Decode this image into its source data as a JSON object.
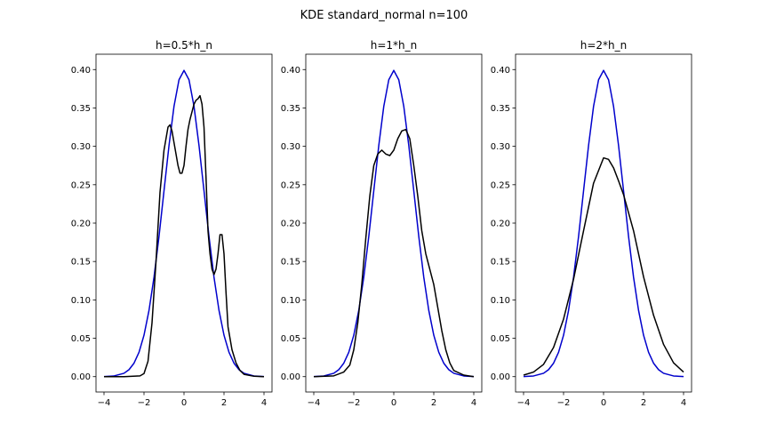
{
  "figure": {
    "suptitle": "KDE standard_normal n=100"
  },
  "chart_data": [
    {
      "type": "line",
      "title": "h=0.5*h_n",
      "xlabel": "",
      "ylabel": "",
      "xlim": [
        -4.4,
        4.4
      ],
      "ylim": [
        -0.02,
        0.42
      ],
      "xticks": [
        -4,
        -2,
        0,
        2,
        4
      ],
      "xtick_labels": [
        "−4",
        "−2",
        "0",
        "2",
        "4"
      ],
      "yticks": [
        0.0,
        0.05,
        0.1,
        0.15,
        0.2,
        0.25,
        0.3,
        0.35,
        0.4
      ],
      "ytick_labels": [
        "0.00",
        "0.05",
        "0.10",
        "0.15",
        "0.20",
        "0.25",
        "0.30",
        "0.35",
        "0.40"
      ],
      "series": [
        {
          "color": "#0000cc",
          "x": [
            -4,
            -3.5,
            -3,
            -2.75,
            -2.5,
            -2.25,
            -2,
            -1.75,
            -1.5,
            -1.25,
            -1,
            -0.75,
            -0.5,
            -0.25,
            0,
            0.25,
            0.5,
            0.75,
            1,
            1.25,
            1.5,
            1.75,
            2,
            2.25,
            2.5,
            2.75,
            3,
            3.5,
            4
          ],
          "y": [
            0.0001,
            0.0009,
            0.0044,
            0.0091,
            0.0175,
            0.0317,
            0.054,
            0.0863,
            0.1295,
            0.1826,
            0.242,
            0.3011,
            0.3521,
            0.3867,
            0.3989,
            0.3867,
            0.3521,
            0.3011,
            0.242,
            0.1826,
            0.1295,
            0.0863,
            0.054,
            0.0317,
            0.0175,
            0.0091,
            0.0044,
            0.0009,
            0.0001
          ]
        },
        {
          "color": "#000000",
          "x": [
            -4,
            -3,
            -2.2,
            -2.0,
            -1.8,
            -1.6,
            -1.4,
            -1.2,
            -1.0,
            -0.9,
            -0.8,
            -0.7,
            -0.6,
            -0.5,
            -0.4,
            -0.3,
            -0.2,
            -0.1,
            0.0,
            0.1,
            0.2,
            0.3,
            0.4,
            0.5,
            0.6,
            0.7,
            0.8,
            0.9,
            1.0,
            1.1,
            1.2,
            1.3,
            1.4,
            1.5,
            1.6,
            1.7,
            1.8,
            1.9,
            2.0,
            2.1,
            2.2,
            2.4,
            2.6,
            2.8,
            3.0,
            3.5,
            4.0
          ],
          "y": [
            0.0,
            0.0,
            0.001,
            0.004,
            0.02,
            0.07,
            0.15,
            0.24,
            0.295,
            0.31,
            0.325,
            0.328,
            0.32,
            0.305,
            0.29,
            0.275,
            0.265,
            0.265,
            0.275,
            0.3,
            0.322,
            0.335,
            0.345,
            0.355,
            0.36,
            0.362,
            0.366,
            0.355,
            0.325,
            0.26,
            0.19,
            0.16,
            0.14,
            0.133,
            0.14,
            0.16,
            0.185,
            0.185,
            0.16,
            0.11,
            0.065,
            0.035,
            0.018,
            0.008,
            0.003,
            0.0005,
            0.0
          ]
        }
      ]
    },
    {
      "type": "line",
      "title": "h=1*h_n",
      "xlabel": "",
      "ylabel": "",
      "xlim": [
        -4.4,
        4.4
      ],
      "ylim": [
        -0.02,
        0.42
      ],
      "xticks": [
        -4,
        -2,
        0,
        2,
        4
      ],
      "xtick_labels": [
        "−4",
        "−2",
        "0",
        "2",
        "4"
      ],
      "yticks": [
        0.0,
        0.05,
        0.1,
        0.15,
        0.2,
        0.25,
        0.3,
        0.35,
        0.4
      ],
      "ytick_labels": [
        "0.00",
        "0.05",
        "0.10",
        "0.15",
        "0.20",
        "0.25",
        "0.30",
        "0.35",
        "0.40"
      ],
      "series": [
        {
          "color": "#0000cc",
          "x": [
            -4,
            -3.5,
            -3,
            -2.75,
            -2.5,
            -2.25,
            -2,
            -1.75,
            -1.5,
            -1.25,
            -1,
            -0.75,
            -0.5,
            -0.25,
            0,
            0.25,
            0.5,
            0.75,
            1,
            1.25,
            1.5,
            1.75,
            2,
            2.25,
            2.5,
            2.75,
            3,
            3.5,
            4
          ],
          "y": [
            0.0001,
            0.0009,
            0.0044,
            0.0091,
            0.0175,
            0.0317,
            0.054,
            0.0863,
            0.1295,
            0.1826,
            0.242,
            0.3011,
            0.3521,
            0.3867,
            0.3989,
            0.3867,
            0.3521,
            0.3011,
            0.242,
            0.1826,
            0.1295,
            0.0863,
            0.054,
            0.0317,
            0.0175,
            0.0091,
            0.0044,
            0.0009,
            0.0001
          ]
        },
        {
          "color": "#000000",
          "x": [
            -4,
            -3.0,
            -2.5,
            -2.2,
            -2.0,
            -1.8,
            -1.6,
            -1.4,
            -1.2,
            -1.0,
            -0.8,
            -0.6,
            -0.4,
            -0.2,
            0.0,
            0.2,
            0.4,
            0.6,
            0.8,
            1.0,
            1.2,
            1.4,
            1.6,
            1.8,
            2.0,
            2.2,
            2.4,
            2.6,
            2.8,
            3.0,
            3.5,
            4.0
          ],
          "y": [
            0.0,
            0.001,
            0.006,
            0.015,
            0.035,
            0.07,
            0.12,
            0.18,
            0.235,
            0.275,
            0.29,
            0.295,
            0.29,
            0.288,
            0.295,
            0.31,
            0.32,
            0.322,
            0.31,
            0.275,
            0.235,
            0.19,
            0.16,
            0.14,
            0.12,
            0.09,
            0.06,
            0.035,
            0.018,
            0.008,
            0.002,
            0.0
          ]
        }
      ]
    },
    {
      "type": "line",
      "title": "h=2*h_n",
      "xlabel": "",
      "ylabel": "",
      "xlim": [
        -4.4,
        4.4
      ],
      "ylim": [
        -0.02,
        0.42
      ],
      "xticks": [
        -4,
        -2,
        0,
        2,
        4
      ],
      "xtick_labels": [
        "−4",
        "−2",
        "0",
        "2",
        "4"
      ],
      "yticks": [
        0.0,
        0.05,
        0.1,
        0.15,
        0.2,
        0.25,
        0.3,
        0.35,
        0.4
      ],
      "ytick_labels": [
        "0.00",
        "0.05",
        "0.10",
        "0.15",
        "0.20",
        "0.25",
        "0.30",
        "0.35",
        "0.40"
      ],
      "series": [
        {
          "color": "#0000cc",
          "x": [
            -4,
            -3.5,
            -3,
            -2.75,
            -2.5,
            -2.25,
            -2,
            -1.75,
            -1.5,
            -1.25,
            -1,
            -0.75,
            -0.5,
            -0.25,
            0,
            0.25,
            0.5,
            0.75,
            1,
            1.25,
            1.5,
            1.75,
            2,
            2.25,
            2.5,
            2.75,
            3,
            3.5,
            4
          ],
          "y": [
            0.0001,
            0.0009,
            0.0044,
            0.0091,
            0.0175,
            0.0317,
            0.054,
            0.0863,
            0.1295,
            0.1826,
            0.242,
            0.3011,
            0.3521,
            0.3867,
            0.3989,
            0.3867,
            0.3521,
            0.3011,
            0.242,
            0.1826,
            0.1295,
            0.0863,
            0.054,
            0.0317,
            0.0175,
            0.0091,
            0.0044,
            0.0009,
            0.0001
          ]
        },
        {
          "color": "#000000",
          "x": [
            -4,
            -3.5,
            -3.0,
            -2.5,
            -2.0,
            -1.5,
            -1.0,
            -0.5,
            0.0,
            0.25,
            0.5,
            0.75,
            1.0,
            1.5,
            2.0,
            2.5,
            3.0,
            3.5,
            4.0
          ],
          "y": [
            0.002,
            0.006,
            0.016,
            0.038,
            0.075,
            0.127,
            0.19,
            0.252,
            0.285,
            0.283,
            0.272,
            0.255,
            0.237,
            0.19,
            0.13,
            0.08,
            0.042,
            0.018,
            0.006
          ]
        }
      ]
    }
  ]
}
